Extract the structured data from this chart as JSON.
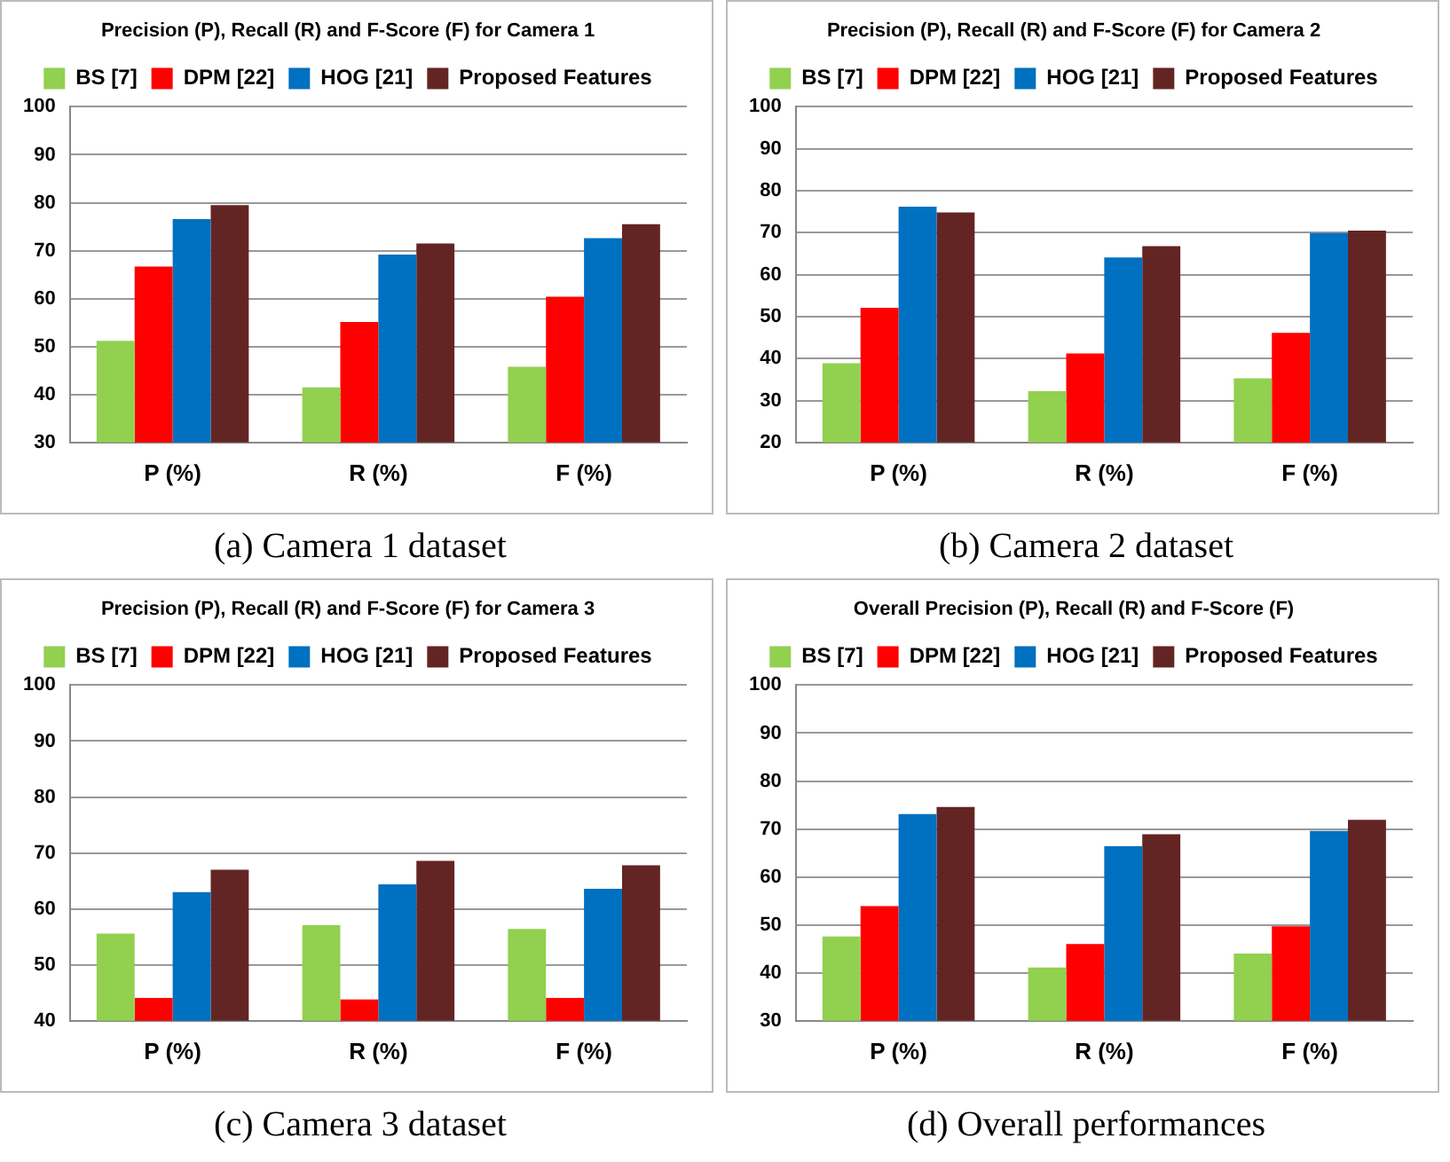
{
  "chart_data": [
    {
      "type": "bar",
      "title": "Precision (P), Recall (R) and F-Score (F) for Camera 1",
      "categories": [
        "P (%)",
        "R (%)",
        "F (%)"
      ],
      "series": [
        {
          "name": "BS [7]",
          "color": "#92d050",
          "values": [
            51.2,
            41.5,
            45.8
          ]
        },
        {
          "name": "DPM [22]",
          "color": "#ff0000",
          "values": [
            66.7,
            55.1,
            60.4
          ]
        },
        {
          "name": "HOG [21]",
          "color": "#0070c0",
          "values": [
            76.6,
            69.2,
            72.6
          ]
        },
        {
          "name": "Proposed Features",
          "color": "#632523",
          "values": [
            79.5,
            71.5,
            75.5
          ]
        }
      ],
      "ylim": [
        30,
        100
      ],
      "yticks": [
        30,
        40,
        50,
        60,
        70,
        80,
        90,
        100
      ],
      "grid": "y",
      "legend": "top",
      "annotations": [
        "(a) Camera 1 dataset"
      ]
    },
    {
      "type": "bar",
      "title": "Precision (P), Recall (R) and F-Score (F) for Camera 2",
      "categories": [
        "P (%)",
        "R (%)",
        "F (%)"
      ],
      "series": [
        {
          "name": "BS [7]",
          "color": "#92d050",
          "values": [
            38.9,
            32.2,
            35.3
          ]
        },
        {
          "name": "DPM [22]",
          "color": "#ff0000",
          "values": [
            52.1,
            41.2,
            46.1
          ]
        },
        {
          "name": "HOG [21]",
          "color": "#0070c0",
          "values": [
            76.2,
            64.1,
            69.9
          ]
        },
        {
          "name": "Proposed Features",
          "color": "#632523",
          "values": [
            74.8,
            66.8,
            70.5
          ]
        }
      ],
      "ylim": [
        20,
        100
      ],
      "yticks": [
        20,
        30,
        40,
        50,
        60,
        70,
        80,
        90,
        100
      ],
      "grid": "y",
      "legend": "top",
      "annotations": [
        "(b) Camera 2 dataset"
      ]
    },
    {
      "type": "bar",
      "title": "Precision (P), Recall (R) and F-Score (F) for Camera 3",
      "categories": [
        "P (%)",
        "R (%)",
        "F (%)"
      ],
      "series": [
        {
          "name": "BS [7]",
          "color": "#92d050",
          "values": [
            55.6,
            57.1,
            56.4
          ]
        },
        {
          "name": "DPM [22]",
          "color": "#ff0000",
          "values": [
            44.1,
            43.8,
            44.1
          ]
        },
        {
          "name": "HOG [21]",
          "color": "#0070c0",
          "values": [
            63.0,
            64.4,
            63.6
          ]
        },
        {
          "name": "Proposed Features",
          "color": "#632523",
          "values": [
            67.0,
            68.6,
            67.8
          ]
        }
      ],
      "ylim": [
        40,
        100
      ],
      "yticks": [
        40,
        50,
        60,
        70,
        80,
        90,
        100
      ],
      "grid": "y",
      "legend": "top",
      "annotations": [
        "(c) Camera 3 dataset"
      ]
    },
    {
      "type": "bar",
      "title": "Overall Precision (P), Recall (R) and F-Score (F)",
      "categories": [
        "P (%)",
        "R (%)",
        "F (%)"
      ],
      "series": [
        {
          "name": "BS [7]",
          "color": "#92d050",
          "values": [
            47.6,
            41.1,
            44.0
          ]
        },
        {
          "name": "DPM [22]",
          "color": "#ff0000",
          "values": [
            53.9,
            46.0,
            49.7
          ]
        },
        {
          "name": "HOG [21]",
          "color": "#0070c0",
          "values": [
            73.1,
            66.4,
            69.6
          ]
        },
        {
          "name": "Proposed Features",
          "color": "#632523",
          "values": [
            74.6,
            68.9,
            71.9
          ]
        }
      ],
      "ylim": [
        30,
        100
      ],
      "yticks": [
        30,
        40,
        50,
        60,
        70,
        80,
        90,
        100
      ],
      "grid": "y",
      "legend": "top",
      "annotations": [
        "(d) Overall performances"
      ]
    }
  ]
}
